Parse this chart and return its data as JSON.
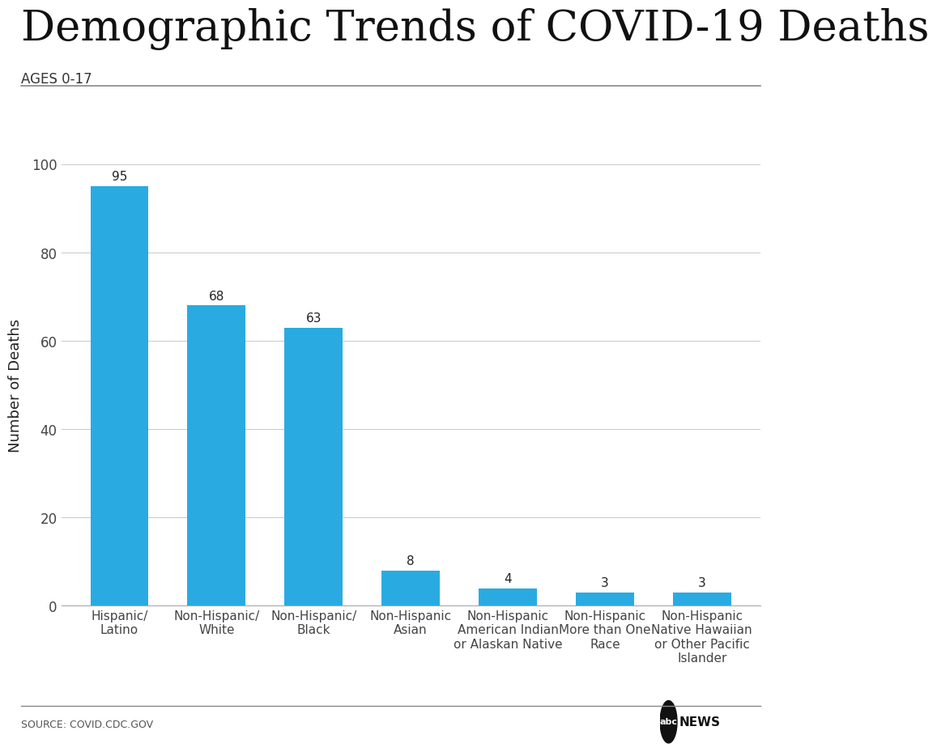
{
  "title": "Demographic Trends of COVID-19 Deaths",
  "subtitle": "AGES 0-17",
  "categories": [
    "Hispanic/\nLatino",
    "Non-Hispanic/\nWhite",
    "Non-Hispanic/\nBlack",
    "Non-Hispanic\nAsian",
    "Non-Hispanic\nAmerican Indian\nor Alaskan Native",
    "Non-Hispanic\nMore than One\nRace",
    "Non-Hispanic\nNative Hawaiian\nor Other Pacific\nIslander"
  ],
  "values": [
    95,
    68,
    63,
    8,
    4,
    3,
    3
  ],
  "bar_color": "#29ABE2",
  "ylabel": "Number of Deaths",
  "ylim": [
    0,
    100
  ],
  "yticks": [
    0,
    20,
    40,
    60,
    80,
    100
  ],
  "background_color": "#ffffff",
  "title_fontsize": 38,
  "subtitle_fontsize": 12,
  "ylabel_fontsize": 13,
  "ytick_fontsize": 12,
  "xtick_fontsize": 11,
  "value_label_fontsize": 11,
  "source_text": "SOURCE: COVID.CDC.GOV",
  "source_fontsize": 9,
  "news_text": "NEWS",
  "news_fontsize": 11
}
